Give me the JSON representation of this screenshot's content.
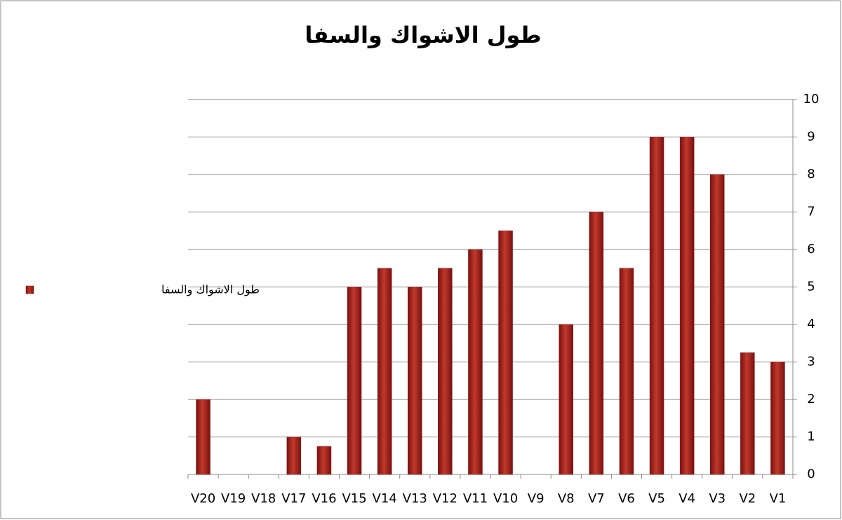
{
  "chart_data": {
    "type": "bar",
    "title": "طول الاشواك والسفا",
    "categories": [
      "V1",
      "V2",
      "V3",
      "V4",
      "V5",
      "V6",
      "V7",
      "V8",
      "V9",
      "V10",
      "V11",
      "V12",
      "V13",
      "V14",
      "V15",
      "V16",
      "V17",
      "V18",
      "V19",
      "V20"
    ],
    "series": [
      {
        "name": "طول الاشواك والسفا",
        "color": "#c0392b",
        "values": [
          3,
          3.25,
          8,
          9,
          9,
          5.5,
          7,
          4,
          null,
          6.5,
          6,
          5.5,
          5,
          5.5,
          5,
          0.75,
          1,
          null,
          null,
          2
        ]
      }
    ],
    "ylim": [
      0,
      10
    ],
    "yticks": [
      0,
      1,
      2,
      3,
      4,
      5,
      6,
      7,
      8,
      9,
      10
    ],
    "grid": true,
    "reversed_x": true,
    "y_axis_side": "right",
    "legend": "left"
  }
}
